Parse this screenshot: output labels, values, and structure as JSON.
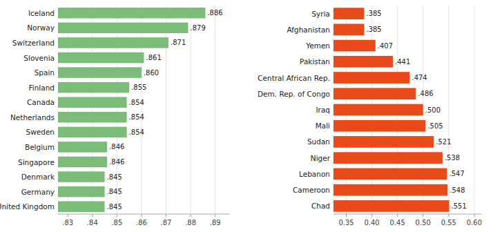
{
  "chart_data": [
    {
      "type": "bar",
      "orientation": "horizontal",
      "categories": [
        "Iceland",
        "Norway",
        "Switzerland",
        "Slovenia",
        "Spain",
        "Finland",
        "Canada",
        "Netherlands",
        "Sweden",
        "Belgium",
        "Singapore",
        "Denmark",
        "Germany",
        "United Kingdom"
      ],
      "values": [
        0.886,
        0.879,
        0.871,
        0.861,
        0.86,
        0.855,
        0.854,
        0.854,
        0.854,
        0.846,
        0.846,
        0.845,
        0.845,
        0.845
      ],
      "value_labels": [
        ".886",
        ".879",
        ".871",
        ".861",
        ".860",
        ".855",
        ".854",
        ".854",
        ".854",
        ".846",
        ".846",
        ".845",
        ".845",
        ".845"
      ],
      "data_labels": true,
      "color": "#7BBD78",
      "xlim": [
        0.826,
        0.896
      ],
      "xticks": [
        {
          "value": 0.83,
          "label": ".83"
        },
        {
          "value": 0.84,
          "label": ".84"
        },
        {
          "value": 0.85,
          "label": ".85"
        },
        {
          "value": 0.86,
          "label": ".86"
        },
        {
          "value": 0.87,
          "label": ".87"
        },
        {
          "value": 0.88,
          "label": ".88"
        },
        {
          "value": 0.89,
          "label": ".89"
        }
      ],
      "grid": true
    },
    {
      "type": "bar",
      "orientation": "horizontal",
      "categories": [
        "Syria",
        "Afghanistan",
        "Yemen",
        "Pakistan",
        "Central African Rep.",
        "Dem. Rep. of Congo",
        "Iraq",
        "Mali",
        "Sudan",
        "Niger",
        "Lebanon",
        "Cameroon",
        "Chad"
      ],
      "values": [
        0.385,
        0.385,
        0.407,
        0.441,
        0.474,
        0.486,
        0.5,
        0.505,
        0.521,
        0.538,
        0.547,
        0.548,
        0.551
      ],
      "value_labels": [
        ".385",
        ".385",
        ".407",
        ".441",
        ".474",
        ".486",
        ".500",
        ".505",
        ".521",
        ".538",
        ".547",
        ".548",
        ".551"
      ],
      "data_labels": true,
      "color": "#E84A1A",
      "xlim": [
        0.325,
        0.615
      ],
      "xticks": [
        0.35,
        {
          "value": 0.4,
          "label": "0.40"
        },
        0.45,
        {
          "value": 0.5,
          "label": "0.50"
        },
        0.55,
        {
          "value": 0.6,
          "label": "0.60"
        }
      ],
      "grid": true
    }
  ]
}
